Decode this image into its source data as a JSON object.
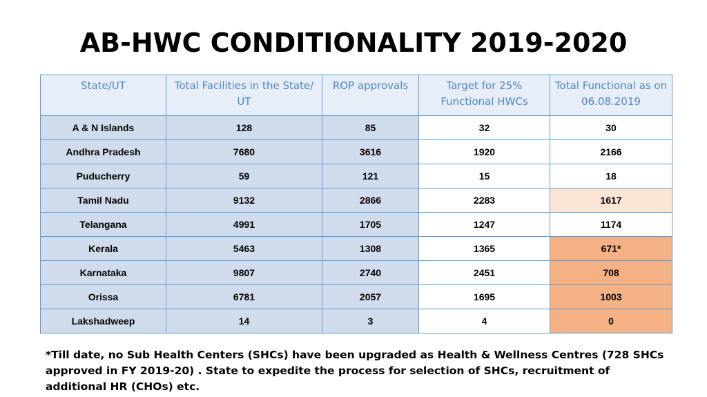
{
  "title": "AB-HWC CONDITIONALITY 2019-2020",
  "table": {
    "headers": [
      "State/UT",
      "Total Facilities in the State/ UT",
      "ROP approvals",
      "Target for 25% Functional HWCs",
      "Total Functional as on 06.08.2019"
    ],
    "rows": [
      [
        "A & N Islands",
        "128",
        "85",
        "32",
        "30"
      ],
      [
        "Andhra Pradesh",
        "7680",
        "3616",
        "1920",
        "2166"
      ],
      [
        "Puducherry",
        "59",
        "121",
        "15",
        "18"
      ],
      [
        "Tamil Nadu",
        "9132",
        "2866",
        "2283",
        "1617"
      ],
      [
        "Telangana",
        "4991",
        "1705",
        "1247",
        "1174"
      ],
      [
        "Kerala",
        "5463",
        "1308",
        "1365",
        "671*"
      ],
      [
        "Karnataka",
        "9807",
        "2740",
        "2451",
        "708"
      ],
      [
        "Orissa",
        "6781",
        "2057",
        "1695",
        "1003"
      ],
      [
        "Lakshadweep",
        "14",
        "3",
        "4",
        "0"
      ]
    ],
    "highlight_colors": {
      "light": "#fbe5d6",
      "orange": "#f4b183",
      "blue_shade": "#d0dcec"
    }
  },
  "footnote": "*Till date, no Sub Health Centers (SHCs) have been upgraded as Health & Wellness Centres (728 SHCs approved in FY 2019-20) . State to expedite the process for selection of SHCs, recruitment of additional HR (CHOs) etc."
}
